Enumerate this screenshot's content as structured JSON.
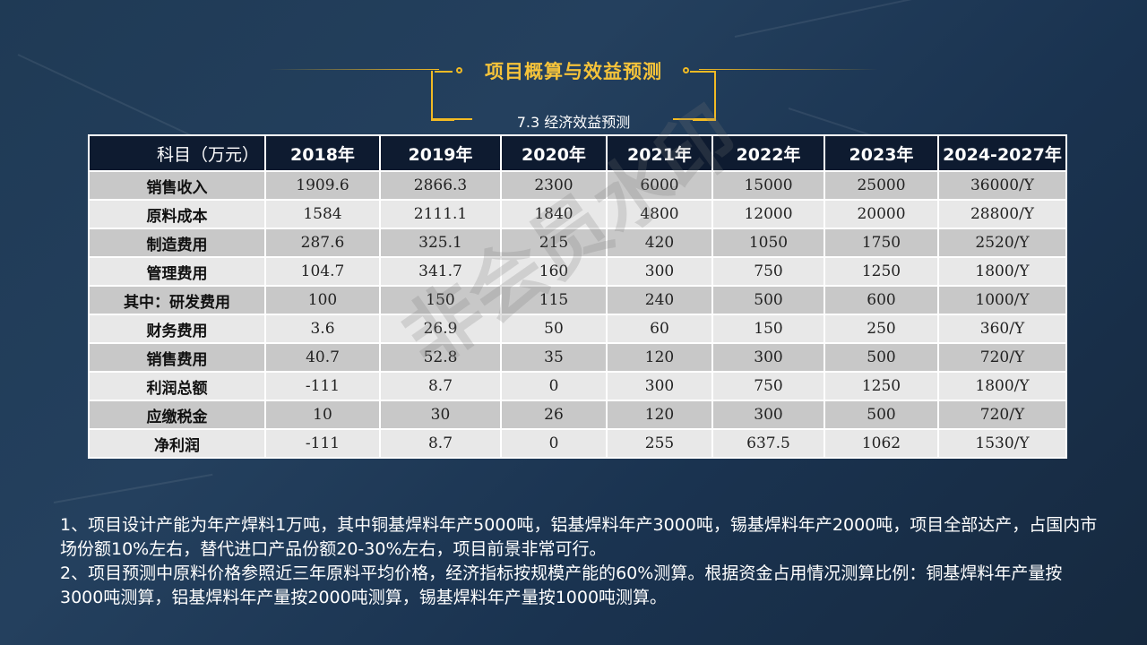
{
  "title": {
    "main": "项目概算与效益预测",
    "sub": "7.3 经济效益预测"
  },
  "watermark": "非会员水印",
  "colors": {
    "accent": "#f2ba24",
    "header_bg": "#0e1b30",
    "row_odd": "#c8c8c8",
    "row_even": "#e8e8e8"
  },
  "table": {
    "headers": [
      "科目（万元）",
      "2018年",
      "2019年",
      "2020年",
      "2021年",
      "2022年",
      "2023年",
      "2024-2027年"
    ],
    "rows": [
      {
        "label": "销售收入",
        "values": [
          "1909.6",
          "2866.3",
          "2300",
          "6000",
          "15000",
          "25000",
          "36000/Y"
        ]
      },
      {
        "label": "原料成本",
        "values": [
          "1584",
          "2111.1",
          "1840",
          "4800",
          "12000",
          "20000",
          "28800/Y"
        ]
      },
      {
        "label": "制造费用",
        "values": [
          "287.6",
          "325.1",
          "215",
          "420",
          "1050",
          "1750",
          "2520/Y"
        ]
      },
      {
        "label": "管理费用",
        "values": [
          "104.7",
          "341.7",
          "160",
          "300",
          "750",
          "1250",
          "1800/Y"
        ]
      },
      {
        "label": "其中：研发费用",
        "values": [
          "100",
          "150",
          "115",
          "240",
          "500",
          "600",
          "1000/Y"
        ]
      },
      {
        "label": "财务费用",
        "values": [
          "3.6",
          "26.9",
          "50",
          "60",
          "150",
          "250",
          "360/Y"
        ]
      },
      {
        "label": "销售费用",
        "values": [
          "40.7",
          "52.8",
          "35",
          "120",
          "300",
          "500",
          "720/Y"
        ]
      },
      {
        "label": "利润总额",
        "values": [
          "-111",
          "8.7",
          "0",
          "300",
          "750",
          "1250",
          "1800/Y"
        ]
      },
      {
        "label": "应缴税金",
        "values": [
          "10",
          "30",
          "26",
          "120",
          "300",
          "500",
          "720/Y"
        ]
      },
      {
        "label": "净利润",
        "values": [
          "-111",
          "8.7",
          "0",
          "255",
          "637.5",
          "1062",
          "1530/Y"
        ]
      }
    ]
  },
  "notes": [
    "1、项目设计产能为年产焊料1万吨，其中铜基焊料年产5000吨，铝基焊料年产3000吨，锡基焊料年产2000吨，项目全部达产，占国内市场份额10%左右，替代进口产品份额20-30%左右，项目前景非常可行。",
    "2、项目预测中原料价格参照近三年原料平均价格，经济指标按规模产能的60%测算。根据资金占用情况测算比例：铜基焊料年产量按3000吨测算，铝基焊料年产量按2000吨测算，锡基焊料年产量按1000吨测算。"
  ]
}
